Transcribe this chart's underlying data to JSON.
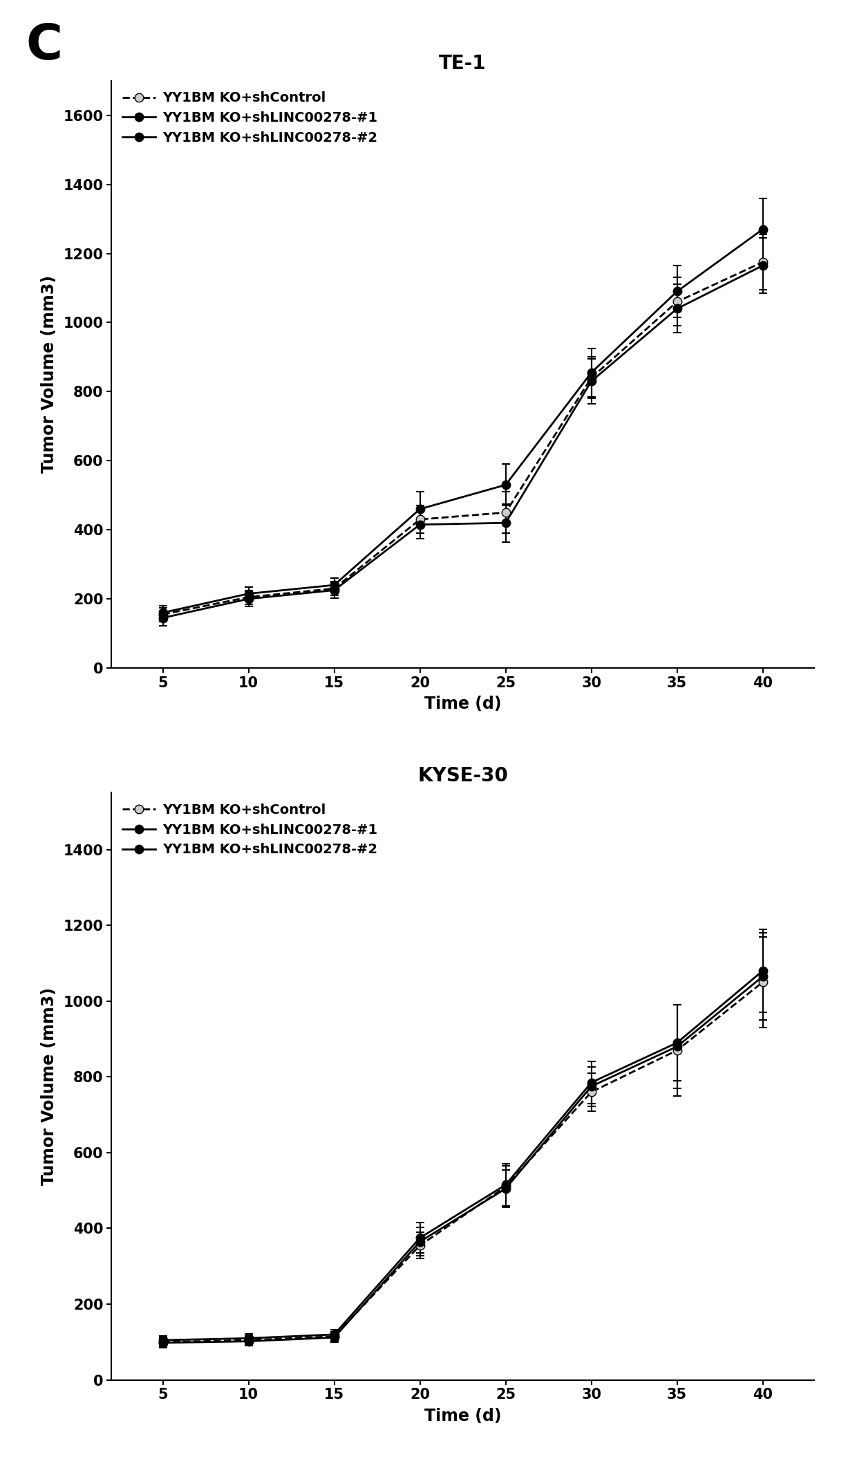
{
  "te1": {
    "title": "TE-1",
    "xlabel": "Time (d)",
    "ylabel": "Tumor Volume (mm3)",
    "xlim": [
      2,
      43
    ],
    "ylim": [
      0,
      1700
    ],
    "yticks": [
      0,
      200,
      400,
      600,
      800,
      1000,
      1200,
      1400,
      1600
    ],
    "xticks": [
      5,
      10,
      15,
      20,
      25,
      30,
      35,
      40
    ],
    "x": [
      5,
      10,
      15,
      20,
      25,
      30,
      35,
      40
    ],
    "series": [
      {
        "label": "YY1BM KO+shControl",
        "y": [
          155,
          205,
          230,
          430,
          450,
          840,
          1060,
          1175
        ],
        "yerr": [
          20,
          20,
          20,
          40,
          60,
          60,
          70,
          80
        ],
        "linestyle": "--",
        "marker": "o",
        "color": "#000000",
        "markersize": 9,
        "markerfacecolor": "#cccccc",
        "linewidth": 2.0
      },
      {
        "label": "YY1BM KO+shLINC00278-#1",
        "y": [
          160,
          215,
          240,
          460,
          530,
          855,
          1090,
          1270
        ],
        "yerr": [
          20,
          20,
          20,
          50,
          60,
          70,
          75,
          90
        ],
        "linestyle": "-",
        "marker": "o",
        "color": "#000000",
        "markersize": 9,
        "markerfacecolor": "#000000",
        "linewidth": 2.0
      },
      {
        "label": "YY1BM KO+shLINC00278-#2",
        "y": [
          145,
          200,
          225,
          415,
          420,
          830,
          1040,
          1165
        ],
        "yerr": [
          22,
          22,
          22,
          40,
          55,
          65,
          70,
          80
        ],
        "linestyle": "-",
        "marker": "o",
        "color": "#000000",
        "markersize": 9,
        "markerfacecolor": "#000000",
        "linewidth": 2.0
      }
    ]
  },
  "kyse30": {
    "title": "KYSE-30",
    "xlabel": "Time (d)",
    "ylabel": "Tumor Volume (mm3)",
    "xlim": [
      2,
      43
    ],
    "ylim": [
      0,
      1550
    ],
    "yticks": [
      0,
      200,
      400,
      600,
      800,
      1000,
      1200,
      1400
    ],
    "xticks": [
      5,
      10,
      15,
      20,
      25,
      30,
      35,
      40
    ],
    "x": [
      5,
      10,
      15,
      20,
      25,
      30,
      35,
      40
    ],
    "series": [
      {
        "label": "YY1BM KO+shControl",
        "y": [
          100,
          105,
          115,
          355,
          510,
          760,
          870,
          1050
        ],
        "yerr": [
          12,
          12,
          12,
          35,
          55,
          50,
          120,
          120
        ],
        "linestyle": "--",
        "marker": "o",
        "color": "#000000",
        "markersize": 9,
        "markerfacecolor": "#cccccc",
        "linewidth": 2.0
      },
      {
        "label": "YY1BM KO+shLINC00278-#1",
        "y": [
          105,
          110,
          120,
          375,
          515,
          785,
          890,
          1080
        ],
        "yerr": [
          12,
          12,
          12,
          40,
          55,
          55,
          100,
          110
        ],
        "linestyle": "-",
        "marker": "o",
        "color": "#000000",
        "markersize": 9,
        "markerfacecolor": "#000000",
        "linewidth": 2.0
      },
      {
        "label": "YY1BM KO+shLINC00278-#2",
        "y": [
          98,
          102,
          112,
          365,
          505,
          775,
          880,
          1065
        ],
        "yerr": [
          12,
          12,
          12,
          38,
          50,
          52,
          110,
          115
        ],
        "linestyle": "-",
        "marker": "o",
        "color": "#000000",
        "markersize": 9,
        "markerfacecolor": "#000000",
        "linewidth": 2.0
      }
    ]
  },
  "panel_label": "C",
  "panel_label_fontsize": 52,
  "title_fontsize": 20,
  "axis_label_fontsize": 17,
  "tick_fontsize": 15,
  "legend_fontsize": 14
}
